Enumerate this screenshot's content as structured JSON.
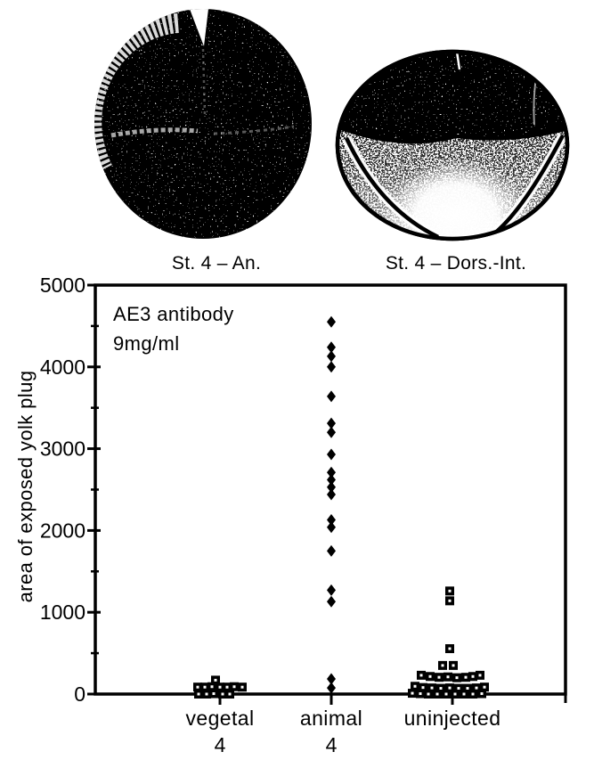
{
  "page": {
    "background": "#ffffff",
    "ink_color": "#000000"
  },
  "figure": {
    "illustrations": [
      {
        "id": "stage4-embryo-animal-pole-view",
        "caption": "St. 4 – An."
      },
      {
        "id": "stage4-embryo-dorsal-interior-view",
        "caption": "St. 4 – Dors.-Int."
      }
    ]
  },
  "chart_data": {
    "type": "scatter",
    "variant": "categorical-strip-plot",
    "annotation": {
      "line1": "AE3 antibody",
      "line2": "9mg/ml"
    },
    "ylabel": "area of exposed yolk plug",
    "xlabel": "",
    "ylim": [
      0,
      5000
    ],
    "yticks": [
      0,
      1000,
      2000,
      3000,
      4000,
      5000
    ],
    "minor_ytick_step": 500,
    "frame": "full-box",
    "grid": false,
    "marker_color": "#000000",
    "categories": [
      {
        "label": "vegetal",
        "sublabel": "4",
        "marker": "open-square",
        "points": [
          [
            170,
            -5
          ],
          [
            85,
            -25
          ],
          [
            85,
            -17
          ],
          [
            90,
            -9
          ],
          [
            85,
            0
          ],
          [
            85,
            8
          ],
          [
            90,
            16
          ],
          [
            85,
            25
          ],
          [
            0,
            -24
          ],
          [
            0,
            -15
          ],
          [
            5,
            -7
          ],
          [
            0,
            3
          ],
          [
            0,
            11
          ]
        ]
      },
      {
        "label": "animal",
        "sublabel": "4",
        "marker": "filled-diamond",
        "points": [
          [
            4550,
            0
          ],
          [
            4240,
            0
          ],
          [
            4130,
            0
          ],
          [
            4000,
            0
          ],
          [
            3640,
            0
          ],
          [
            3310,
            0
          ],
          [
            3200,
            0
          ],
          [
            2930,
            0
          ],
          [
            2710,
            0
          ],
          [
            2620,
            0
          ],
          [
            2530,
            0
          ],
          [
            2440,
            0
          ],
          [
            2130,
            0
          ],
          [
            2040,
            0
          ],
          [
            1750,
            0
          ],
          [
            1270,
            0
          ],
          [
            1130,
            0
          ],
          [
            185,
            0
          ],
          [
            75,
            0
          ]
        ]
      },
      {
        "label": "uninjected",
        "sublabel": "",
        "marker": "open-square",
        "points": [
          [
            1260,
            -3
          ],
          [
            1140,
            -3
          ],
          [
            555,
            -3
          ],
          [
            350,
            -11
          ],
          [
            350,
            1
          ],
          [
            230,
            -35
          ],
          [
            215,
            -25
          ],
          [
            205,
            -15
          ],
          [
            210,
            -5
          ],
          [
            200,
            5
          ],
          [
            205,
            15
          ],
          [
            215,
            23
          ],
          [
            230,
            31
          ],
          [
            95,
            -42
          ],
          [
            80,
            -33
          ],
          [
            75,
            -23
          ],
          [
            70,
            -13
          ],
          [
            75,
            -3
          ],
          [
            70,
            7
          ],
          [
            70,
            17
          ],
          [
            75,
            27
          ],
          [
            85,
            36
          ],
          [
            10,
            -45
          ],
          [
            5,
            -36
          ],
          [
            0,
            -27
          ],
          [
            0,
            -17
          ],
          [
            0,
            -7
          ],
          [
            0,
            3
          ],
          [
            0,
            13
          ],
          [
            0,
            23
          ],
          [
            5,
            33
          ]
        ]
      }
    ]
  }
}
